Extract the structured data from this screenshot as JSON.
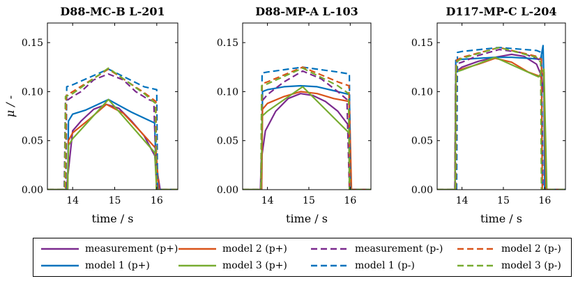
{
  "chart_data": [
    {
      "type": "line",
      "title": "D88-MC-B L-201",
      "xlabel": "time / s",
      "ylabel": "μ / -",
      "xlim": [
        13.4,
        16.5
      ],
      "ylim": [
        0,
        0.17
      ],
      "xticks": [
        14,
        15,
        16
      ],
      "xtick_labels": [
        "14",
        "15",
        "16"
      ],
      "yticks": [
        0,
        0.05,
        0.1,
        0.15
      ],
      "ytick_labels": [
        "0.00",
        "0.05",
        "0.10",
        "0.15"
      ],
      "series": [
        {
          "name": "measurement (p+)",
          "x": [
            13.4,
            13.85,
            13.9,
            14.0,
            14.2,
            14.5,
            14.8,
            15.1,
            15.4,
            15.7,
            15.95,
            16.08,
            16.5
          ],
          "y": [
            0,
            0,
            0.02,
            0.06,
            0.07,
            0.082,
            0.087,
            0.083,
            0.07,
            0.055,
            0.035,
            0,
            0
          ]
        },
        {
          "name": "model 1 (p+)",
          "x": [
            13.4,
            13.88,
            13.9,
            14.0,
            14.3,
            14.6,
            14.85,
            15.1,
            15.4,
            15.7,
            15.95,
            16.0,
            16.5
          ],
          "y": [
            0,
            0,
            0.07,
            0.077,
            0.081,
            0.087,
            0.092,
            0.086,
            0.079,
            0.073,
            0.068,
            0,
            0
          ]
        },
        {
          "name": "model 2 (p+)",
          "x": [
            13.4,
            13.88,
            13.9,
            14.0,
            14.4,
            14.8,
            15.2,
            15.6,
            15.98,
            16.05,
            16.5
          ],
          "y": [
            0,
            0,
            0.05,
            0.058,
            0.072,
            0.087,
            0.078,
            0.06,
            0.042,
            0,
            0
          ]
        },
        {
          "name": "model 3 (p+)",
          "x": [
            13.4,
            13.88,
            13.9,
            14.0,
            14.85,
            15.95,
            16.0,
            16.5
          ],
          "y": [
            0,
            0,
            0.045,
            0.052,
            0.092,
            0.038,
            0,
            0
          ]
        },
        {
          "name": "measurement (p-)",
          "x": [
            13.4,
            13.8,
            13.83,
            14.0,
            14.2,
            14.5,
            14.85,
            15.2,
            15.5,
            15.8,
            15.93,
            16.0,
            16.5
          ],
          "y": [
            0,
            0,
            0.09,
            0.095,
            0.1,
            0.112,
            0.118,
            0.112,
            0.1,
            0.092,
            0.09,
            0,
            0
          ]
        },
        {
          "name": "model 1 (p-)",
          "x": [
            13.4,
            13.84,
            13.86,
            14.0,
            14.85,
            15.7,
            16.0,
            16.02,
            16.5
          ],
          "y": [
            0,
            0,
            0.105,
            0.107,
            0.123,
            0.105,
            0.102,
            0,
            0
          ]
        },
        {
          "name": "model 2 (p-)",
          "x": [
            13.4,
            13.83,
            13.85,
            14.0,
            14.85,
            15.7,
            15.98,
            16.0,
            16.5
          ],
          "y": [
            0,
            0,
            0.096,
            0.1,
            0.123,
            0.099,
            0.09,
            0,
            0
          ]
        },
        {
          "name": "model 3 (p-)",
          "x": [
            13.4,
            13.81,
            13.83,
            14.0,
            14.85,
            15.7,
            15.97,
            15.99,
            16.5
          ],
          "y": [
            0,
            0,
            0.095,
            0.098,
            0.124,
            0.098,
            0.088,
            0,
            0
          ]
        }
      ]
    },
    {
      "type": "line",
      "title": "D88-MP-A L-103",
      "xlabel": "time / s",
      "ylabel": "",
      "xlim": [
        13.4,
        16.5
      ],
      "ylim": [
        0,
        0.17
      ],
      "xticks": [
        14,
        15,
        16
      ],
      "xtick_labels": [
        "14",
        "15",
        "16"
      ],
      "yticks": [
        0,
        0.05,
        0.1,
        0.15
      ],
      "ytick_labels": [
        "0.00",
        "0.05",
        "0.10",
        "0.15"
      ],
      "series": [
        {
          "name": "measurement (p+)",
          "x": [
            13.4,
            13.83,
            13.85,
            13.95,
            14.2,
            14.5,
            14.8,
            15.1,
            15.4,
            15.7,
            15.97,
            16.02,
            16.5
          ],
          "y": [
            0,
            0,
            0.03,
            0.06,
            0.08,
            0.093,
            0.098,
            0.096,
            0.09,
            0.08,
            0.065,
            0,
            0
          ]
        },
        {
          "name": "model 1 (p+)",
          "x": [
            13.4,
            13.86,
            13.88,
            14.0,
            14.4,
            14.8,
            15.2,
            15.6,
            15.98,
            16.02,
            16.5
          ],
          "y": [
            0,
            0,
            0.1,
            0.102,
            0.105,
            0.106,
            0.105,
            0.101,
            0.097,
            0,
            0
          ]
        },
        {
          "name": "model 2 (p+)",
          "x": [
            13.4,
            13.86,
            13.88,
            14.0,
            14.4,
            14.8,
            15.2,
            15.6,
            15.98,
            16.03,
            16.5
          ],
          "y": [
            0,
            0,
            0.082,
            0.088,
            0.095,
            0.1,
            0.098,
            0.093,
            0.09,
            0,
            0
          ]
        },
        {
          "name": "model 3 (p+)",
          "x": [
            13.4,
            13.85,
            13.87,
            14.0,
            14.85,
            15.97,
            16.0,
            16.5
          ],
          "y": [
            0,
            0,
            0.075,
            0.08,
            0.105,
            0.058,
            0,
            0
          ]
        },
        {
          "name": "measurement (p-)",
          "x": [
            13.4,
            13.84,
            13.86,
            14.0,
            14.4,
            14.85,
            15.3,
            15.7,
            15.92,
            15.98,
            16.5
          ],
          "y": [
            0,
            0,
            0.09,
            0.097,
            0.11,
            0.121,
            0.113,
            0.1,
            0.092,
            0,
            0
          ]
        },
        {
          "name": "model 1 (p-)",
          "x": [
            13.4,
            13.85,
            13.87,
            14.0,
            14.85,
            15.7,
            15.98,
            16.0,
            16.5
          ],
          "y": [
            0,
            0,
            0.119,
            0.12,
            0.125,
            0.12,
            0.118,
            0,
            0
          ]
        },
        {
          "name": "model 2 (p-)",
          "x": [
            13.4,
            13.85,
            13.87,
            14.0,
            14.85,
            15.7,
            15.97,
            15.99,
            16.5
          ],
          "y": [
            0,
            0,
            0.108,
            0.11,
            0.125,
            0.11,
            0.106,
            0,
            0
          ]
        },
        {
          "name": "model 3 (p-)",
          "x": [
            13.4,
            13.84,
            13.86,
            14.0,
            14.85,
            15.7,
            15.96,
            15.98,
            16.5
          ],
          "y": [
            0,
            0,
            0.106,
            0.108,
            0.124,
            0.106,
            0.098,
            0,
            0
          ]
        }
      ]
    },
    {
      "type": "line",
      "title": "D117-MP-C L-204",
      "xlabel": "time / s",
      "ylabel": "",
      "xlim": [
        13.4,
        16.5
      ],
      "ylim": [
        0,
        0.17
      ],
      "xticks": [
        14,
        15,
        16
      ],
      "xtick_labels": [
        "14",
        "15",
        "16"
      ],
      "yticks": [
        0,
        0.05,
        0.1,
        0.15
      ],
      "ytick_labels": [
        "0.00",
        "0.05",
        "0.10",
        "0.15"
      ],
      "series": [
        {
          "name": "measurement (p+)",
          "x": [
            13.4,
            13.83,
            13.85,
            14.0,
            14.4,
            14.8,
            15.2,
            15.5,
            15.8,
            15.9,
            15.95,
            15.98,
            16.02,
            16.5
          ],
          "y": [
            0,
            0,
            0.12,
            0.125,
            0.131,
            0.135,
            0.138,
            0.136,
            0.128,
            0.118,
            0.1,
            0.12,
            0,
            0
          ]
        },
        {
          "name": "model 1 (p+)",
          "x": [
            13.4,
            13.83,
            13.85,
            14.0,
            14.4,
            14.8,
            15.2,
            15.6,
            15.9,
            15.96,
            15.98,
            16.0,
            16.5
          ],
          "y": [
            0,
            0,
            0.132,
            0.133,
            0.134,
            0.135,
            0.135,
            0.134,
            0.133,
            0.147,
            0.11,
            0,
            0
          ]
        },
        {
          "name": "model 2 (p+)",
          "x": [
            13.4,
            13.83,
            13.85,
            14.0,
            14.4,
            14.8,
            15.2,
            15.6,
            15.92,
            15.98,
            16.03,
            16.5
          ],
          "y": [
            0,
            0,
            0.12,
            0.123,
            0.128,
            0.134,
            0.13,
            0.12,
            0.115,
            0.12,
            0,
            0
          ]
        },
        {
          "name": "model 3 (p+)",
          "x": [
            13.4,
            13.83,
            13.85,
            14.0,
            14.8,
            15.85,
            15.98,
            16.05,
            16.5
          ],
          "y": [
            0,
            0,
            0.12,
            0.122,
            0.135,
            0.115,
            0.123,
            0,
            0
          ]
        },
        {
          "name": "measurement (p-)",
          "x": [
            13.4,
            13.83,
            13.85,
            14.0,
            14.4,
            14.9,
            15.4,
            15.8,
            15.92,
            15.96,
            16.5
          ],
          "y": [
            0,
            0,
            0.128,
            0.13,
            0.137,
            0.143,
            0.14,
            0.134,
            0.131,
            0,
            0
          ]
        },
        {
          "name": "model 1 (p-)",
          "x": [
            13.4,
            13.87,
            13.89,
            14.0,
            14.9,
            15.8,
            15.92,
            15.94,
            16.5
          ],
          "y": [
            0,
            0,
            0.14,
            0.141,
            0.145,
            0.142,
            0.14,
            0,
            0
          ]
        },
        {
          "name": "model 2 (p-)",
          "x": [
            13.4,
            13.85,
            13.87,
            14.0,
            14.9,
            15.8,
            15.92,
            15.94,
            16.5
          ],
          "y": [
            0,
            0,
            0.132,
            0.135,
            0.145,
            0.136,
            0.133,
            0,
            0
          ]
        },
        {
          "name": "model 3 (p-)",
          "x": [
            13.4,
            13.84,
            13.86,
            14.0,
            14.9,
            15.8,
            15.9,
            15.92,
            16.5
          ],
          "y": [
            0,
            0,
            0.13,
            0.134,
            0.145,
            0.135,
            0.13,
            0,
            0
          ]
        }
      ]
    }
  ],
  "legend": {
    "placement": "bottom",
    "items": [
      {
        "label": "measurement (p+)",
        "color": "#7b2a8e",
        "dash": "solid"
      },
      {
        "label": "model 2 (p+)",
        "color": "#d95319",
        "dash": "solid"
      },
      {
        "label": "measurement (p-)",
        "color": "#7b2a8e",
        "dash": "dashed"
      },
      {
        "label": "model 2 (p-)",
        "color": "#d95319",
        "dash": "dashed"
      },
      {
        "label": "model 1 (p+)",
        "color": "#0072bd",
        "dash": "solid"
      },
      {
        "label": "model 3 (p+)",
        "color": "#77ac30",
        "dash": "solid"
      },
      {
        "label": "model 1 (p-)",
        "color": "#0072bd",
        "dash": "dashed"
      },
      {
        "label": "model 3 (p-)",
        "color": "#77ac30",
        "dash": "dashed"
      }
    ]
  },
  "series_colors": {
    "measurement (p+)": "#7b2a8e",
    "model 1 (p+)": "#0072bd",
    "model 2 (p+)": "#d95319",
    "model 3 (p+)": "#77ac30",
    "measurement (p-)": "#7b2a8e",
    "model 1 (p-)": "#0072bd",
    "model 2 (p-)": "#d95319",
    "model 3 (p-)": "#77ac30"
  }
}
